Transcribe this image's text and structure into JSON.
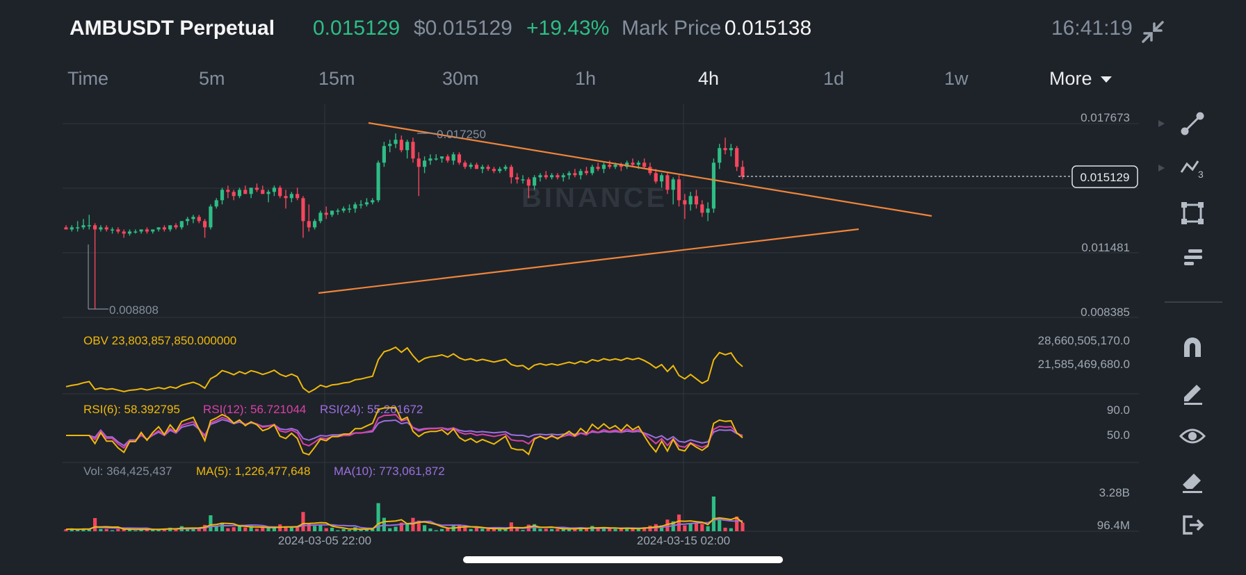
{
  "header": {
    "symbol": "AMBUSDT Perpetual",
    "last_price": "0.015129",
    "usd_price": "$0.015129",
    "change": "+19.43%",
    "mark_label": "Mark Price",
    "mark_price": "0.015138",
    "clock": "16:41:19"
  },
  "timeframes": [
    "Time",
    "5m",
    "15m",
    "30m",
    "1h",
    "4h",
    "1d",
    "1w",
    "More"
  ],
  "active_timeframe": "4h",
  "main_chart": {
    "price_axis": [
      "0.017673",
      "0.011481",
      "0.008385"
    ],
    "high_label": "0.017250",
    "low_label": "0.008808",
    "current_tag": "0.015129",
    "watermark": "BINANCE"
  },
  "obv": {
    "label": "OBV 23,803,857,850.000000",
    "axis": [
      "28,660,505,170.0",
      "21,585,469,680.0"
    ]
  },
  "rsi": {
    "rsi6": "RSI(6): 58.392795",
    "rsi12": "RSI(12): 56.721044",
    "rsi24": "RSI(24): 55.261672",
    "axis": [
      "90.0",
      "50.0"
    ]
  },
  "volume": {
    "vol": "Vol: 364,425,437",
    "ma5": "MA(5): 1,226,477,648",
    "ma10": "MA(10): 773,061,872",
    "axis": [
      "3.28B",
      "96.4M"
    ]
  },
  "time_axis": [
    "2024-03-05 22:00",
    "2024-03-15 02:00"
  ],
  "toolbar_icons": [
    "trend-line-icon",
    "fib-icon",
    "rectangle-icon",
    "lines-icon",
    "magnet-icon",
    "pencil-icon",
    "eye-icon",
    "eraser-icon",
    "exit-icon"
  ],
  "colors": {
    "up": "#2ebd85",
    "down": "#f6465d",
    "trend": "#f0853b",
    "obv": "#f0b90b",
    "rsi12": "#d941a8",
    "rsi24": "#9d6fe0",
    "bg": "#1e2329"
  },
  "chart_data": {
    "type": "candlestick",
    "ylim": [
      0.008385,
      0.017673
    ],
    "candles": [
      [
        0.0127,
        0.0128,
        0.0126,
        0.0126
      ],
      [
        0.0126,
        0.0128,
        0.0125,
        0.0127
      ],
      [
        0.0127,
        0.013,
        0.0125,
        0.0127
      ],
      [
        0.0127,
        0.0131,
        0.0126,
        0.0128
      ],
      [
        0.0128,
        0.0133,
        0.0126,
        0.0128
      ],
      [
        0.0128,
        0.0129,
        0.0088,
        0.0126
      ],
      [
        0.0126,
        0.0128,
        0.0125,
        0.0127
      ],
      [
        0.0127,
        0.0128,
        0.0125,
        0.0126
      ],
      [
        0.0126,
        0.0127,
        0.0124,
        0.0126
      ],
      [
        0.0126,
        0.0127,
        0.0124,
        0.0125
      ],
      [
        0.0125,
        0.0126,
        0.0122,
        0.0124
      ],
      [
        0.0124,
        0.0126,
        0.0123,
        0.0125
      ],
      [
        0.0125,
        0.0126,
        0.0124,
        0.0125
      ],
      [
        0.0125,
        0.0126,
        0.0124,
        0.0126
      ],
      [
        0.0126,
        0.0127,
        0.0124,
        0.0125
      ],
      [
        0.0125,
        0.0126,
        0.0124,
        0.0126
      ],
      [
        0.0126,
        0.0127,
        0.0125,
        0.0127
      ],
      [
        0.0127,
        0.0128,
        0.0125,
        0.0126
      ],
      [
        0.0126,
        0.0128,
        0.0125,
        0.0128
      ],
      [
        0.0128,
        0.0129,
        0.0126,
        0.0127
      ],
      [
        0.0127,
        0.013,
        0.0126,
        0.013
      ],
      [
        0.013,
        0.0132,
        0.0128,
        0.0131
      ],
      [
        0.0131,
        0.0133,
        0.0129,
        0.0132
      ],
      [
        0.0132,
        0.0133,
        0.0129,
        0.013
      ],
      [
        0.013,
        0.0131,
        0.0122,
        0.0127
      ],
      [
        0.0127,
        0.0138,
        0.0126,
        0.0137
      ],
      [
        0.0137,
        0.0141,
        0.0136,
        0.014
      ],
      [
        0.014,
        0.0146,
        0.0138,
        0.0145
      ],
      [
        0.0145,
        0.0147,
        0.0141,
        0.0144
      ],
      [
        0.0144,
        0.0145,
        0.014,
        0.0142
      ],
      [
        0.0142,
        0.0146,
        0.0141,
        0.0145
      ],
      [
        0.0145,
        0.0147,
        0.0143,
        0.0143
      ],
      [
        0.0143,
        0.0146,
        0.0141,
        0.0146
      ],
      [
        0.0146,
        0.0148,
        0.0144,
        0.0145
      ],
      [
        0.0145,
        0.0147,
        0.0143,
        0.0143
      ],
      [
        0.0143,
        0.0145,
        0.0139,
        0.0144
      ],
      [
        0.0144,
        0.0147,
        0.0142,
        0.0146
      ],
      [
        0.0146,
        0.0147,
        0.0141,
        0.0142
      ],
      [
        0.0142,
        0.0145,
        0.0136,
        0.0141
      ],
      [
        0.0141,
        0.0144,
        0.0139,
        0.0143
      ],
      [
        0.0143,
        0.0146,
        0.014,
        0.0141
      ],
      [
        0.0141,
        0.0142,
        0.0122,
        0.013
      ],
      [
        0.013,
        0.0138,
        0.0125,
        0.0127
      ],
      [
        0.0127,
        0.0131,
        0.0126,
        0.013
      ],
      [
        0.013,
        0.0135,
        0.0129,
        0.0134
      ],
      [
        0.0134,
        0.0137,
        0.0131,
        0.0133
      ],
      [
        0.0133,
        0.0135,
        0.0132,
        0.0135
      ],
      [
        0.0135,
        0.0136,
        0.0133,
        0.0135
      ],
      [
        0.0135,
        0.0137,
        0.0134,
        0.0136
      ],
      [
        0.0136,
        0.0138,
        0.0134,
        0.0136
      ],
      [
        0.0136,
        0.0139,
        0.0134,
        0.0138
      ],
      [
        0.0138,
        0.014,
        0.0136,
        0.0138
      ],
      [
        0.0138,
        0.0141,
        0.0137,
        0.0139
      ],
      [
        0.0139,
        0.0141,
        0.0138,
        0.014
      ],
      [
        0.014,
        0.0159,
        0.0139,
        0.0158
      ],
      [
        0.0158,
        0.0168,
        0.0156,
        0.0166
      ],
      [
        0.0166,
        0.0169,
        0.0163,
        0.0167
      ],
      [
        0.0167,
        0.0172,
        0.0165,
        0.0169
      ],
      [
        0.0169,
        0.0171,
        0.0163,
        0.0164
      ],
      [
        0.0164,
        0.0169,
        0.016,
        0.0168
      ],
      [
        0.0168,
        0.017,
        0.0158,
        0.016
      ],
      [
        0.016,
        0.0163,
        0.0142,
        0.0156
      ],
      [
        0.0156,
        0.0161,
        0.0153,
        0.0159
      ],
      [
        0.0159,
        0.0162,
        0.0157,
        0.016
      ],
      [
        0.016,
        0.0162,
        0.0159,
        0.016
      ],
      [
        0.016,
        0.0161,
        0.0158,
        0.0161
      ],
      [
        0.0161,
        0.0162,
        0.0158,
        0.0159
      ],
      [
        0.0159,
        0.0163,
        0.0157,
        0.0162
      ],
      [
        0.0162,
        0.0163,
        0.0157,
        0.0158
      ],
      [
        0.0158,
        0.0159,
        0.0155,
        0.0156
      ],
      [
        0.0156,
        0.0158,
        0.0155,
        0.0157
      ],
      [
        0.0157,
        0.0158,
        0.0155,
        0.0155
      ],
      [
        0.0155,
        0.0157,
        0.0153,
        0.0156
      ],
      [
        0.0156,
        0.0157,
        0.0154,
        0.0155
      ],
      [
        0.0155,
        0.0156,
        0.0153,
        0.0154
      ],
      [
        0.0154,
        0.0156,
        0.0153,
        0.0155
      ],
      [
        0.0155,
        0.0157,
        0.0154,
        0.0156
      ],
      [
        0.0156,
        0.0157,
        0.0148,
        0.0151
      ],
      [
        0.0151,
        0.0153,
        0.0148,
        0.015
      ],
      [
        0.015,
        0.0152,
        0.0148,
        0.015
      ],
      [
        0.015,
        0.0151,
        0.0141,
        0.0147
      ],
      [
        0.0147,
        0.0152,
        0.0145,
        0.0151
      ],
      [
        0.0151,
        0.0153,
        0.0149,
        0.0152
      ],
      [
        0.0152,
        0.0154,
        0.015,
        0.0151
      ],
      [
        0.0151,
        0.0153,
        0.015,
        0.0152
      ],
      [
        0.0152,
        0.0153,
        0.015,
        0.0151
      ],
      [
        0.0151,
        0.0153,
        0.0149,
        0.0152
      ],
      [
        0.0152,
        0.0154,
        0.015,
        0.0153
      ],
      [
        0.0153,
        0.0155,
        0.0151,
        0.0152
      ],
      [
        0.0152,
        0.0155,
        0.015,
        0.0154
      ],
      [
        0.0154,
        0.0156,
        0.0152,
        0.0153
      ],
      [
        0.0153,
        0.0157,
        0.0152,
        0.0156
      ],
      [
        0.0156,
        0.0158,
        0.0154,
        0.0155
      ],
      [
        0.0155,
        0.0158,
        0.0153,
        0.0157
      ],
      [
        0.0157,
        0.0159,
        0.0155,
        0.0156
      ],
      [
        0.0156,
        0.0158,
        0.0155,
        0.0157
      ],
      [
        0.0157,
        0.0158,
        0.0154,
        0.0156
      ],
      [
        0.0156,
        0.0159,
        0.0155,
        0.0158
      ],
      [
        0.0158,
        0.016,
        0.0156,
        0.0157
      ],
      [
        0.0157,
        0.0159,
        0.0155,
        0.0158
      ],
      [
        0.0158,
        0.016,
        0.0155,
        0.0156
      ],
      [
        0.0156,
        0.0158,
        0.0152,
        0.0153
      ],
      [
        0.0153,
        0.0155,
        0.0148,
        0.0149
      ],
      [
        0.0149,
        0.0153,
        0.0146,
        0.0152
      ],
      [
        0.0152,
        0.0153,
        0.0143,
        0.0145
      ],
      [
        0.0145,
        0.0151,
        0.0138,
        0.015
      ],
      [
        0.015,
        0.0152,
        0.0137,
        0.014
      ],
      [
        0.014,
        0.0143,
        0.0131,
        0.0138
      ],
      [
        0.0138,
        0.0144,
        0.0135,
        0.0142
      ],
      [
        0.0142,
        0.0145,
        0.0136,
        0.0138
      ],
      [
        0.0138,
        0.014,
        0.0132,
        0.0134
      ],
      [
        0.0134,
        0.0139,
        0.013,
        0.0136
      ],
      [
        0.0136,
        0.016,
        0.0134,
        0.0158
      ],
      [
        0.0158,
        0.0167,
        0.0155,
        0.0165
      ],
      [
        0.0165,
        0.017,
        0.0162,
        0.0164
      ],
      [
        0.0164,
        0.0167,
        0.0161,
        0.0165
      ],
      [
        0.0165,
        0.0166,
        0.0154,
        0.0156
      ],
      [
        0.0156,
        0.0159,
        0.015,
        0.01513
      ]
    ]
  }
}
